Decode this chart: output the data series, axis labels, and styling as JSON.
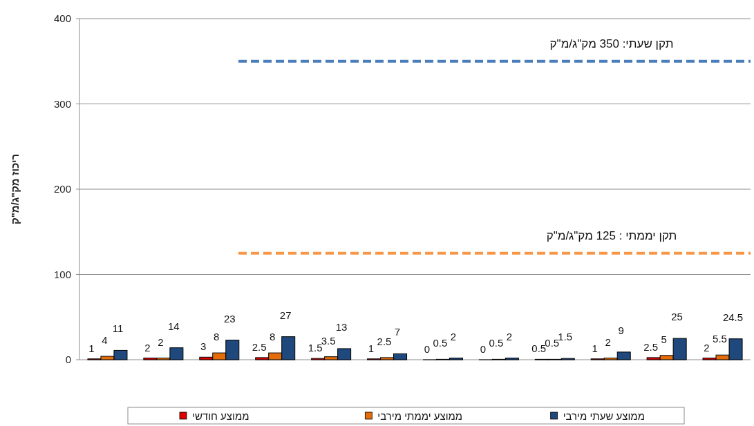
{
  "chart_data": {
    "type": "bar",
    "ylabel": "ריכוז מק\"ג/מ\"ק",
    "categories": [
      null,
      null,
      null,
      null,
      null,
      null,
      null,
      null,
      null,
      null,
      null,
      null
    ],
    "series": [
      {
        "name": "ממוצע חודשי",
        "color": "#e00000",
        "values": [
          1,
          2,
          3,
          2.5,
          1.5,
          1,
          0,
          0,
          0.5,
          1,
          2.5,
          2
        ]
      },
      {
        "name": "ממוצע יממתי מירבי",
        "color": "#e46c0a",
        "values": [
          4,
          2,
          8,
          8,
          3.5,
          2.5,
          0.5,
          0.5,
          0.5,
          2,
          5,
          5.5
        ]
      },
      {
        "name": "ממוצע שעתי מירבי",
        "color": "#1f497d",
        "values": [
          11,
          14,
          23,
          27,
          13,
          7,
          2,
          2,
          1.5,
          9,
          25,
          24.5
        ]
      }
    ],
    "ylim": [
      0,
      400
    ],
    "yticks": [
      0,
      100,
      200,
      300,
      400
    ],
    "grid": "y",
    "data_labels": true,
    "legend": "bottom",
    "ref_lines": [
      {
        "axis": "y",
        "value": 350,
        "label": "תקן  שעתי: 350 מק\"ג/מ\"ק",
        "color": "#4a7ebb",
        "line_style": "dashed"
      },
      {
        "axis": "y",
        "value": 125,
        "label": "תקן יממתי : 125 מק\"ג/מ\"ק",
        "color": "#f79646",
        "line_style": "dashed"
      }
    ]
  }
}
